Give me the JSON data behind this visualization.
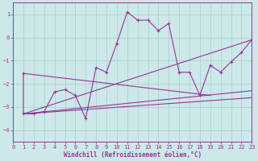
{
  "xlabel": "Windchill (Refroidissement éolien,°C)",
  "xlim": [
    0,
    23
  ],
  "ylim": [
    -4.5,
    1.5
  ],
  "yticks": [
    1,
    0,
    -1,
    -2,
    -3,
    -4
  ],
  "xticks": [
    0,
    1,
    2,
    3,
    4,
    5,
    6,
    7,
    8,
    9,
    10,
    11,
    12,
    13,
    14,
    15,
    16,
    17,
    18,
    19,
    20,
    21,
    22,
    23
  ],
  "bg_color": "#cce8e8",
  "line_color": "#993399",
  "grid_color": "#aacccc",
  "series": [
    {
      "x": [
        1,
        1,
        2,
        3,
        4,
        5,
        6,
        7,
        8,
        9,
        10,
        11,
        12,
        13,
        14,
        15,
        16,
        17,
        18,
        19,
        20,
        21,
        22,
        23
      ],
      "y": [
        -1.55,
        -3.3,
        -3.3,
        -3.2,
        -2.35,
        -2.25,
        -2.5,
        -3.5,
        -1.3,
        -1.5,
        -0.25,
        1.1,
        0.75,
        0.75,
        0.3,
        0.6,
        -1.5,
        -1.5,
        -2.5,
        -1.2,
        -1.5,
        -1.05,
        -0.65,
        -0.1
      ],
      "marker": true
    },
    {
      "x": [
        1,
        23
      ],
      "y": [
        -3.3,
        -0.1
      ],
      "marker": false
    },
    {
      "x": [
        1,
        23
      ],
      "y": [
        -3.3,
        -2.6
      ],
      "marker": false
    },
    {
      "x": [
        1,
        23
      ],
      "y": [
        -3.3,
        -2.3
      ],
      "marker": false
    },
    {
      "x": [
        1,
        19
      ],
      "y": [
        -1.55,
        -2.5
      ],
      "marker": false
    }
  ]
}
